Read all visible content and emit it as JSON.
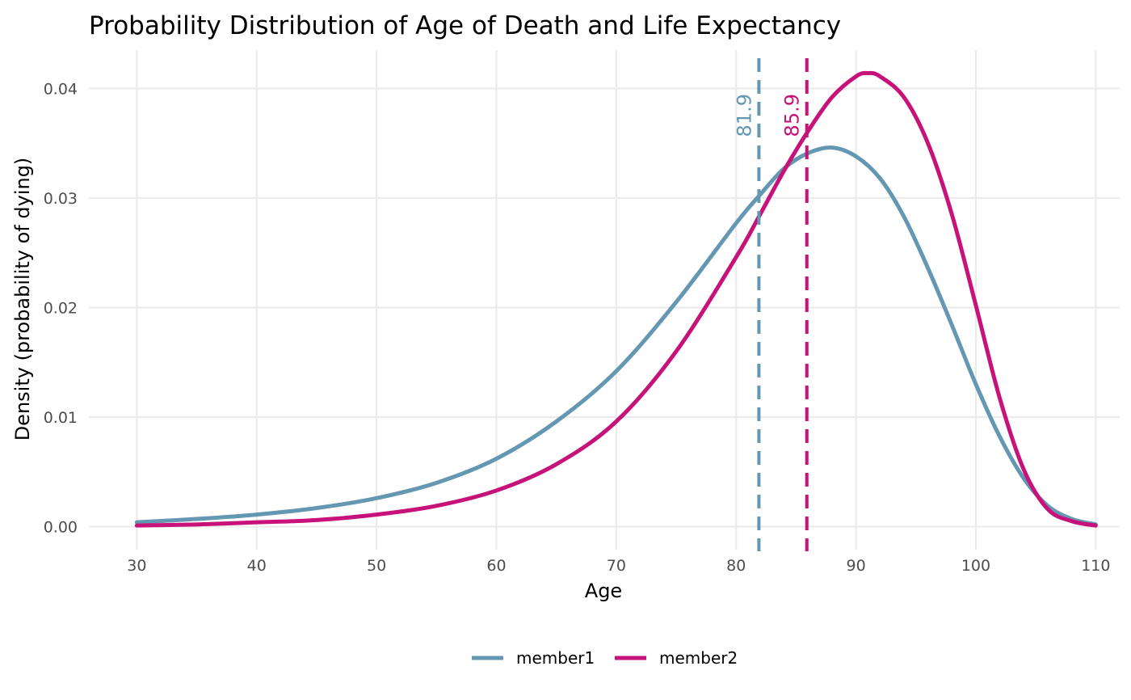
{
  "chart_data": {
    "type": "line",
    "title": "Probability Distribution of Age of Death and Life Expectancy",
    "xlabel": "Age",
    "ylabel": "Density (probability of dying)",
    "xlim": [
      26,
      112
    ],
    "ylim": [
      -0.0021,
      0.0435
    ],
    "x_ticks": [
      30,
      40,
      50,
      60,
      70,
      80,
      90,
      100,
      110
    ],
    "x_tick_labels": [
      "30",
      "40",
      "50",
      "60",
      "70",
      "80",
      "90",
      "100",
      "110"
    ],
    "y_ticks": [
      0.0,
      0.01,
      0.02,
      0.03,
      0.04
    ],
    "y_tick_labels": [
      "0.00",
      "0.01",
      "0.02",
      "0.03",
      "0.04"
    ],
    "grid": true,
    "legend_position": "bottom",
    "series": [
      {
        "name": "member1",
        "color": "#6497b1",
        "x": [
          30,
          35,
          40,
          45,
          50,
          55,
          60,
          65,
          70,
          75,
          80,
          82,
          84,
          86,
          88,
          90,
          92,
          94,
          96,
          98,
          100,
          102,
          104,
          106,
          108,
          110
        ],
        "y": [
          0.0004,
          0.0007,
          0.0011,
          0.0017,
          0.0026,
          0.004,
          0.0062,
          0.0096,
          0.0142,
          0.0205,
          0.0277,
          0.0303,
          0.0327,
          0.0341,
          0.0346,
          0.0338,
          0.0318,
          0.0283,
          0.0236,
          0.0184,
          0.013,
          0.0082,
          0.0044,
          0.0019,
          0.0007,
          0.0002
        ]
      },
      {
        "name": "member2",
        "color": "#c71279",
        "x": [
          30,
          35,
          40,
          45,
          50,
          55,
          60,
          65,
          70,
          75,
          80,
          82,
          84,
          86,
          88,
          90,
          91,
          92,
          94,
          96,
          98,
          100,
          102,
          104,
          106,
          108,
          110
        ],
        "y": [
          0.0001,
          0.0002,
          0.0004,
          0.0006,
          0.0011,
          0.0019,
          0.0033,
          0.0057,
          0.0096,
          0.016,
          0.0246,
          0.0285,
          0.0325,
          0.0361,
          0.0392,
          0.0411,
          0.0414,
          0.0411,
          0.0392,
          0.035,
          0.0285,
          0.0202,
          0.0117,
          0.0052,
          0.0016,
          0.0005,
          0.0001
        ]
      }
    ],
    "vlines": [
      {
        "series": "member1",
        "x": 81.9,
        "label": "81.9",
        "color": "#6497b1",
        "style": "dashed"
      },
      {
        "series": "member2",
        "x": 85.9,
        "label": "85.9",
        "color": "#c71279",
        "style": "dashed"
      }
    ]
  }
}
